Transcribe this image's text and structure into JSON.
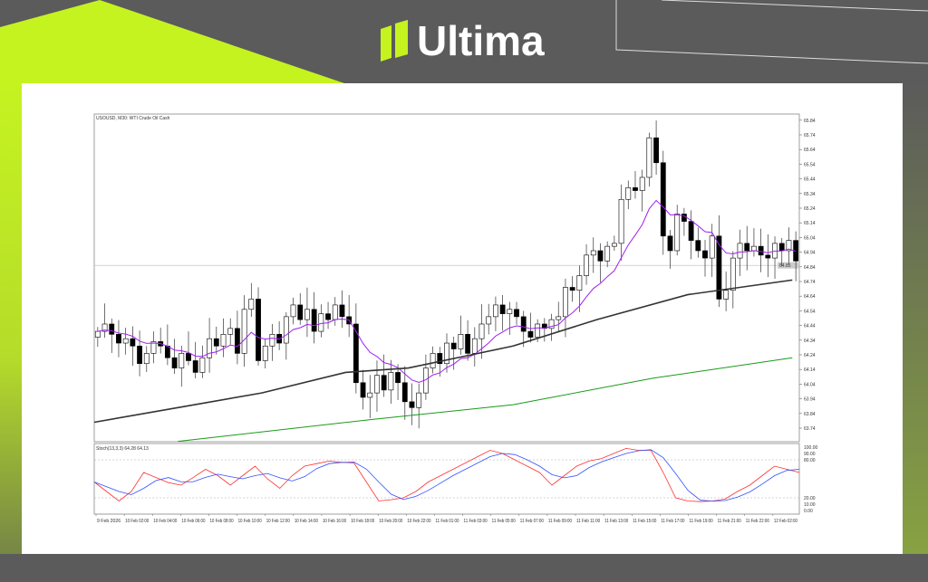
{
  "brand": {
    "name": "Ultima",
    "accent": "#c5f320",
    "background": "#5b5b5b"
  },
  "chart_data": {
    "type": "candlestick",
    "title": "USOUSD, M30: WTI Crude Oil Cash",
    "price_axis": {
      "ticks": [
        "65.84",
        "65.74",
        "65.64",
        "65.54",
        "65.44",
        "65.34",
        "65.24",
        "65.14",
        "65.04",
        "64.94",
        "64.84",
        "64.74",
        "64.64",
        "64.54",
        "64.44",
        "64.34",
        "64.24",
        "64.14",
        "64.04",
        "63.94",
        "63.84",
        "63.74"
      ],
      "ylim": [
        63.65,
        65.87
      ]
    },
    "current_price": 64.85,
    "time_axis": [
      "9 Feb 2026",
      "10 Feb 02:00",
      "10 Feb 04:00",
      "10 Feb 06:00",
      "10 Feb 08:00",
      "10 Feb 10:00",
      "10 Feb 12:00",
      "10 Feb 14:00",
      "10 Feb 16:00",
      "10 Feb 18:00",
      "10 Feb 20:00",
      "10 Feb 22:00",
      "11 Feb 01:00",
      "11 Feb 03:00",
      "11 Feb 05:00",
      "11 Feb 07:00",
      "11 Feb 09:00",
      "11 Feb 11:00",
      "11 Feb 13:00",
      "11 Feb 15:00",
      "11 Feb 17:00",
      "11 Feb 19:00",
      "11 Feb 21:00",
      "11 Feb 22:00",
      "12 Feb 02:00"
    ],
    "first_open": 64.36,
    "closes": [
      64.4,
      64.45,
      64.38,
      64.32,
      64.35,
      64.3,
      64.18,
      64.25,
      64.33,
      64.3,
      64.22,
      64.15,
      64.25,
      64.2,
      64.12,
      64.22,
      64.35,
      64.3,
      64.38,
      64.42,
      64.25,
      64.55,
      64.62,
      64.2,
      64.3,
      64.38,
      64.32,
      64.5,
      64.58,
      64.48,
      64.55,
      64.4,
      64.52,
      64.48,
      64.58,
      64.5,
      64.45,
      64.05,
      63.95,
      63.98,
      64.1,
      64.0,
      64.12,
      64.05,
      63.92,
      63.88,
      63.98,
      64.15,
      64.25,
      64.18,
      64.32,
      64.28,
      64.38,
      64.25,
      64.35,
      64.45,
      64.5,
      64.58,
      64.52,
      64.55,
      64.5,
      64.4,
      64.36,
      64.45,
      64.42,
      64.48,
      64.5,
      64.7,
      64.68,
      64.78,
      64.92,
      64.95,
      64.88,
      64.98,
      65.0,
      65.3,
      65.38,
      65.36,
      65.45,
      65.72,
      65.55,
      65.05,
      64.95,
      65.2,
      65.15,
      65.02,
      64.95,
      64.9,
      65.05,
      64.62,
      64.68,
      64.9,
      65.0,
      64.95,
      64.98,
      64.92,
      64.9,
      65.0,
      64.95,
      65.02,
      64.88
    ],
    "moving_averages": [
      {
        "color": "#a020f0",
        "type": "fast",
        "computed_from": "closes"
      },
      {
        "color": "#333333",
        "points": [
          [
            0,
            63.78
          ],
          [
            12,
            63.88
          ],
          [
            24,
            63.98
          ],
          [
            36,
            64.12
          ],
          [
            45,
            64.15
          ],
          [
            60,
            64.3
          ],
          [
            72,
            64.48
          ],
          [
            85,
            64.65
          ],
          [
            100,
            64.75
          ]
        ]
      },
      {
        "color": "#1a9a1a",
        "points": [
          [
            12,
            63.65
          ],
          [
            40,
            63.8
          ],
          [
            60,
            63.9
          ],
          [
            80,
            64.08
          ],
          [
            100,
            64.22
          ]
        ]
      }
    ],
    "oscillator": {
      "label": "Stoch(13,3,3) 64.28 64.13",
      "ticks": [
        "100.00",
        "90.00",
        "80.00",
        "20.00",
        "10.00",
        "0.00"
      ],
      "levels": [
        80,
        20
      ],
      "main_color": "#ff3030",
      "signal_color": "#3050ff",
      "main": [
        45,
        30,
        15,
        30,
        60,
        52,
        44,
        40,
        52,
        65,
        55,
        40,
        55,
        70,
        50,
        35,
        55,
        70,
        74,
        78,
        76,
        75,
        45,
        15,
        17,
        20,
        30,
        45,
        55,
        65,
        75,
        85,
        95,
        90,
        80,
        70,
        60,
        40,
        55,
        70,
        78,
        82,
        90,
        98,
        95,
        95,
        60,
        20,
        15,
        14,
        15,
        18,
        30,
        40,
        55,
        70,
        65,
        60
      ]
    }
  }
}
